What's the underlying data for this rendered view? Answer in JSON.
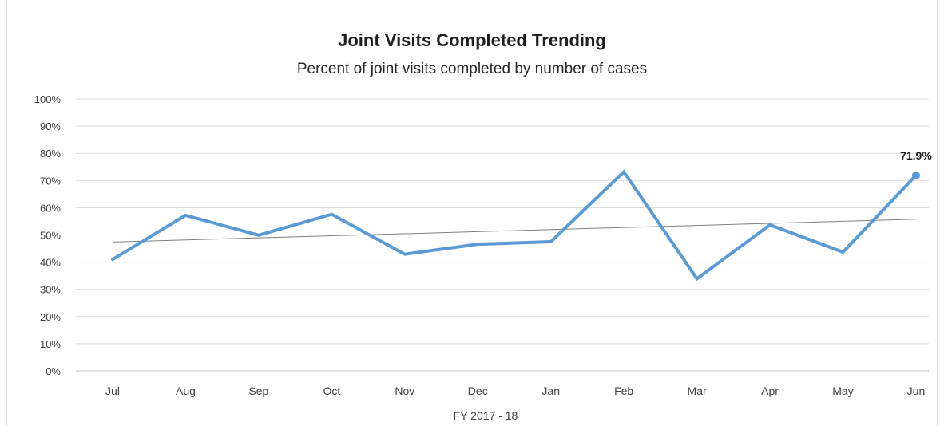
{
  "chart_data": {
    "type": "line",
    "title": "Joint Visits Completed Trending",
    "subtitle": "Percent of joint visits completed by number of cases",
    "xlabel": "FY 2017 - 18",
    "ylabel": "",
    "categories": [
      "Jul",
      "Aug",
      "Sep",
      "Oct",
      "Nov",
      "Dec",
      "Jan",
      "Feb",
      "Mar",
      "Apr",
      "May",
      "Jun"
    ],
    "series": [
      {
        "values": [
          41,
          57.2,
          49.9,
          57.6,
          42.9,
          46.6,
          47.5,
          73.2,
          33.9,
          53.7,
          43.7,
          71.9
        ],
        "color": "#5b9bd5"
      }
    ],
    "trendline": {
      "type": "linear",
      "color": "#808080"
    },
    "data_labels": [
      {
        "category": "Jun",
        "text": "71.9%"
      }
    ],
    "y_ticks": [
      "0%",
      "10%",
      "20%",
      "30%",
      "40%",
      "50%",
      "60%",
      "70%",
      "80%",
      "90%",
      "100%"
    ],
    "ylim": [
      0,
      100
    ],
    "grid": true,
    "legend": "none"
  }
}
